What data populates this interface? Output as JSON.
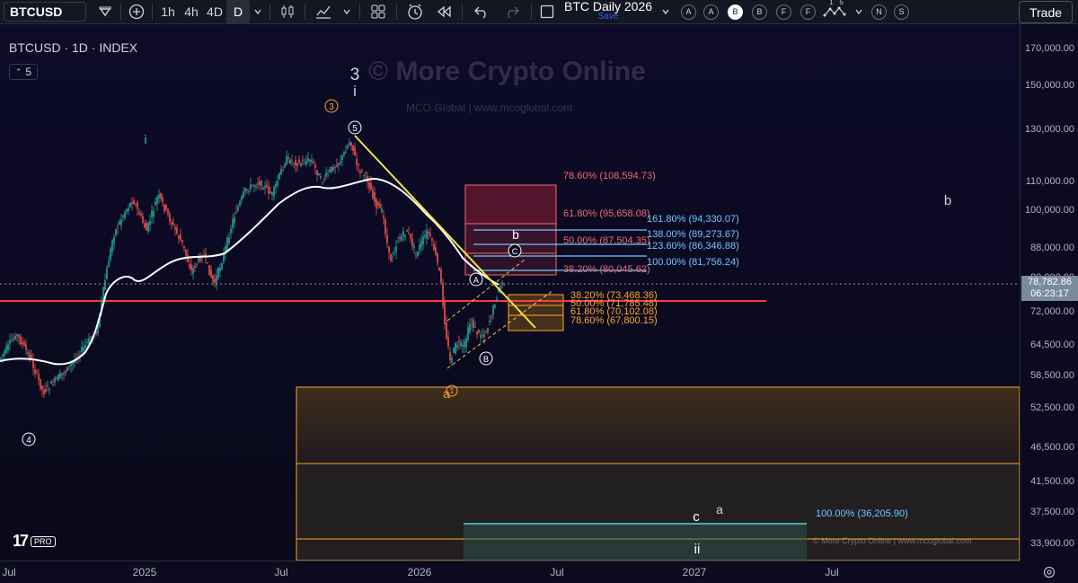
{
  "toolbar": {
    "symbol": "BTCUSD",
    "intervals": [
      "1h",
      "4h",
      "4D",
      "D"
    ],
    "active_interval": "D",
    "layout_name": "BTC Daily 2026",
    "layout_save": "Save",
    "circle_buttons": [
      "A",
      "A",
      "B",
      "B",
      "F",
      "F"
    ],
    "extra_buttons": [
      "N",
      "S"
    ],
    "counter_top": "1   5",
    "trade_label": "Trade"
  },
  "chart": {
    "legend": "BTCUSD · 1D · INDEX",
    "indicator_count": "5",
    "watermark": "© More Crypto Online",
    "watermark_sub": "MCO Global   |   www.mcoglobal.com",
    "footer_copy": "© More Crypto Online   |   www.mcoglobal.com",
    "logo": "17",
    "logo_pro": "PRO",
    "wave_labels": {
      "w3": "3",
      "wi_top": "i",
      "w3_circle": "3",
      "wi_blue": "i",
      "w5": "5",
      "wA": "A",
      "wB": "B",
      "wC": "C",
      "wb_small": "b",
      "wa_small": "a",
      "w1_circle": "1",
      "w4": "4",
      "wb_right": "b",
      "wc": "c",
      "wa2": "a",
      "wii": "ii"
    },
    "fib_red": [
      "78.60% (108,594.73)",
      "61.80% (95,658.08)",
      "50.00% (87,504.35)",
      "38.20% (80,045.62)"
    ],
    "fib_blue": [
      "161.80% (94,330.07)",
      "138.00% (89,273.67)",
      "123.60% (86,346.88)",
      "100.00% (81,756.24)"
    ],
    "fib_orange": [
      "38.20% (73,468.36)",
      "50.00% (71,785.48)",
      "61.80% (70,102.08)",
      "78.60% (67,800.15)"
    ],
    "fib_target": "100.00% (36,205.90)",
    "colors": {
      "candle_up": "#26a69a",
      "candle_down": "#ef5350",
      "ma": "#ffffff",
      "trendline": "#f5e642",
      "horizontal": "#ff3b3b",
      "fib_red": "#f06a6a",
      "fib_blue": "#6fc8ff",
      "fib_orange": "#ffa726"
    }
  },
  "price_axis": {
    "labels": [
      "170,000.00",
      "150,000.00",
      "130,000.00",
      "110,000.00",
      "100,000.00",
      "88,000.00",
      "80,000.00",
      "72,000.00",
      "64,500.00",
      "58,500.00",
      "52,500.00",
      "46,500.00",
      "41,500.00",
      "37,500.00",
      "33,900.00"
    ],
    "current_price": "78,782.86",
    "countdown": "06:23:17"
  },
  "time_axis": {
    "labels": [
      "Jul",
      "2025",
      "Jul",
      "2026",
      "Jul",
      "2027",
      "Jul"
    ]
  }
}
